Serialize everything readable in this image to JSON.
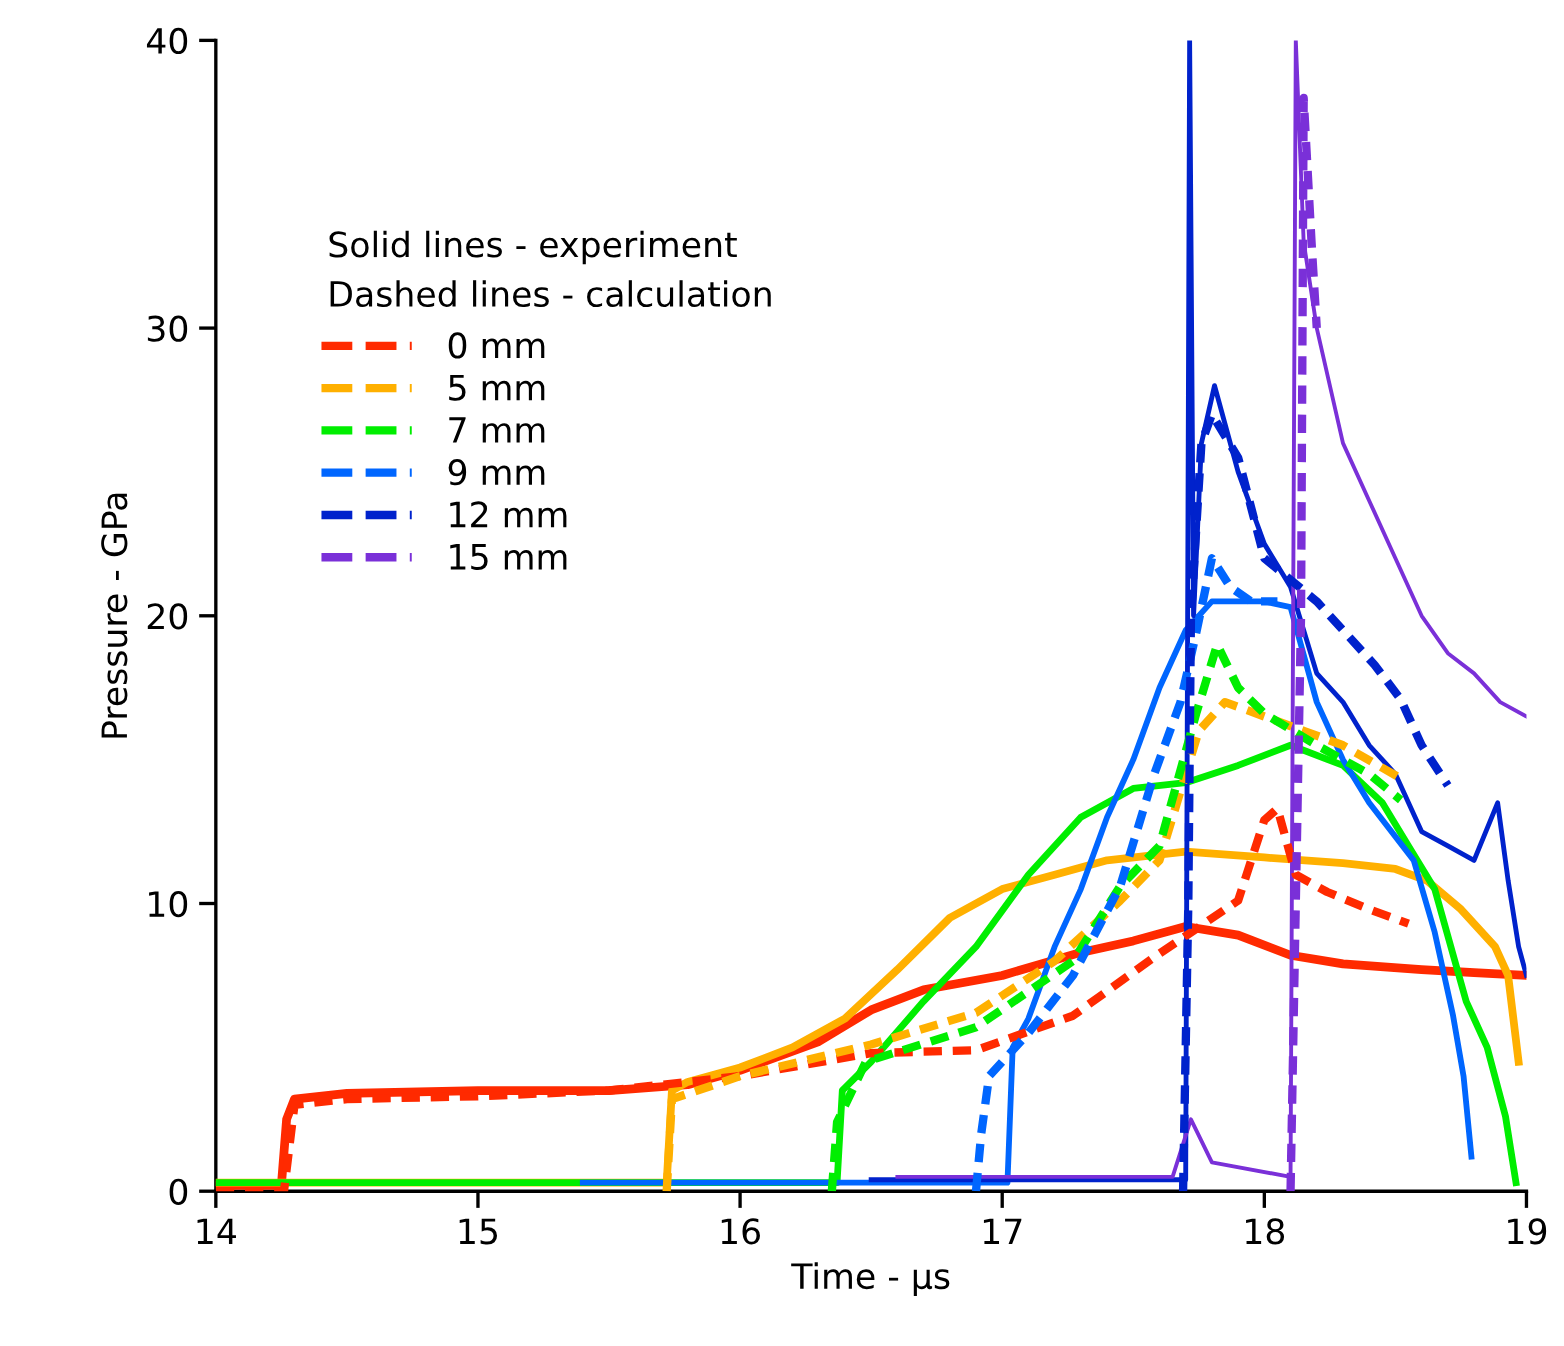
{
  "chart_data": {
    "type": "line",
    "xlabel": "Time - µs",
    "ylabel": "Pressure - GPa",
    "xlim": [
      14,
      19
    ],
    "ylim": [
      0,
      40
    ],
    "xticks": [
      14,
      15,
      16,
      17,
      18,
      19
    ],
    "yticks": [
      0,
      10,
      20,
      30,
      40
    ],
    "grid": false,
    "legend": "top left",
    "marker": "none",
    "annotations": [
      "Solid lines - experiment",
      "Dashed lines - calculation"
    ],
    "series": [
      {
        "color": "#ff2a00",
        "line_style": "solid",
        "x": [
          14,
          14.25,
          14.27,
          14.3,
          14.5,
          15,
          15.5,
          15.8,
          16.0,
          16.3,
          16.5,
          16.7,
          17.0,
          17.3,
          17.5,
          17.7,
          17.9,
          18.1,
          18.3,
          18.6,
          18.8,
          19.0
        ],
        "values": [
          0.2,
          0.2,
          2.5,
          3.2,
          3.4,
          3.5,
          3.5,
          3.7,
          4.2,
          5.2,
          6.3,
          7.0,
          7.5,
          8.3,
          8.7,
          9.2,
          8.9,
          8.2,
          7.9,
          7.7,
          7.6,
          7.5
        ]
      },
      {
        "color": "#ffb000",
        "line_style": "solid",
        "x": [
          14,
          15.72,
          15.74,
          15.8,
          16,
          16.2,
          16.4,
          16.6,
          16.8,
          17.0,
          17.2,
          17.4,
          17.7,
          18.0,
          18.3,
          18.5,
          18.62,
          18.75,
          18.88,
          18.93,
          18.97
        ],
        "values": [
          0.3,
          0.3,
          3.5,
          3.8,
          4.3,
          5.0,
          6.0,
          7.7,
          9.5,
          10.5,
          11.0,
          11.5,
          11.8,
          11.6,
          11.4,
          11.2,
          10.8,
          9.8,
          8.5,
          7.5,
          4.5
        ]
      },
      {
        "color": "#00ee00",
        "line_style": "solid",
        "x": [
          14,
          16.37,
          16.39,
          16.5,
          16.7,
          16.9,
          17.1,
          17.3,
          17.5,
          17.7,
          17.9,
          18.1,
          18.3,
          18.45,
          18.55,
          18.65,
          18.77,
          18.85,
          18.92,
          18.96
        ],
        "values": [
          0.3,
          0.3,
          3.5,
          4.5,
          6.6,
          8.5,
          11.0,
          13.0,
          14.0,
          14.2,
          14.8,
          15.5,
          14.8,
          13.5,
          12.0,
          10.5,
          6.6,
          5.0,
          2.6,
          0.3
        ]
      },
      {
        "color": "#0066ff",
        "line_style": "solid",
        "x": [
          15.4,
          17.02,
          17.04,
          17.1,
          17.2,
          17.3,
          17.4,
          17.5,
          17.6,
          17.7,
          17.8,
          18.0,
          18.1,
          18.2,
          18.3,
          18.4,
          18.57,
          18.65,
          18.72,
          18.76,
          18.79
        ],
        "values": [
          0.3,
          0.3,
          5.0,
          6.0,
          8.5,
          10.5,
          13.0,
          15.0,
          17.5,
          19.5,
          20.5,
          20.5,
          20.3,
          17.0,
          15.0,
          13.5,
          11.5,
          9.0,
          6.1,
          4.0,
          1.2
        ]
      },
      {
        "color": "#0022cc",
        "line_style": "solid",
        "x": [
          16.5,
          17.7,
          17.715,
          17.73,
          17.76,
          17.81,
          17.9,
          18.0,
          18.1,
          18.2,
          18.3,
          18.4,
          18.5,
          18.6,
          18.7,
          18.8,
          18.89,
          18.93,
          18.97,
          19.0
        ],
        "values": [
          0.4,
          0.4,
          40,
          20,
          26,
          28,
          25,
          22.5,
          21,
          18,
          17,
          15.5,
          14.5,
          12.5,
          12,
          11.5,
          13.5,
          10.8,
          8.5,
          7.5
        ]
      },
      {
        "color": "#7a30d8",
        "line_style": "solid",
        "x": [
          16.6,
          17.65,
          17.72,
          17.8,
          18.1,
          18.12,
          18.15,
          18.2,
          18.3,
          18.4,
          18.5,
          18.6,
          18.7,
          18.8,
          18.9,
          19.0
        ],
        "values": [
          0.5,
          0.5,
          2.5,
          1.0,
          0.5,
          40,
          33,
          30,
          26,
          24,
          22,
          20,
          18.7,
          18,
          17,
          16.5
        ]
      },
      {
        "name": "0 mm",
        "color": "#ff2a00",
        "line_style": "dashed",
        "x": [
          14,
          14.26,
          14.3,
          14.5,
          15.0,
          15.5,
          16.0,
          16.5,
          16.9,
          17.27,
          17.59,
          17.9,
          18.0,
          18.05,
          18.12,
          18.24,
          18.4,
          18.55
        ],
        "values": [
          0,
          0,
          3.0,
          3.2,
          3.3,
          3.5,
          4.0,
          4.8,
          4.9,
          6.1,
          8.2,
          10.1,
          12.9,
          13.3,
          11.0,
          10.4,
          9.8,
          9.3
        ]
      },
      {
        "name": "5 mm",
        "color": "#ffb000",
        "line_style": "dashed",
        "x": [
          15.72,
          15.74,
          16.0,
          16.5,
          16.9,
          17.2,
          17.45,
          17.6,
          17.75,
          17.85,
          18.0,
          18.15,
          18.3,
          18.53
        ],
        "values": [
          0,
          3.2,
          4.0,
          5.1,
          6.2,
          8,
          10.1,
          11.5,
          16.0,
          17,
          16.5,
          16,
          15.5,
          14.3
        ]
      },
      {
        "name": "7 mm",
        "color": "#00ee00",
        "line_style": "dashed",
        "x": [
          16.35,
          16.37,
          16.48,
          16.9,
          17.27,
          17.45,
          17.6,
          17.74,
          17.82,
          17.9,
          18.0,
          18.2,
          18.4,
          18.52
        ],
        "values": [
          0,
          2.4,
          4.5,
          5.7,
          8.0,
          10.6,
          12,
          16.6,
          19.0,
          17.5,
          16.6,
          15.5,
          14.5,
          13.6
        ]
      },
      {
        "name": "9 mm",
        "color": "#0066ff",
        "line_style": "dashed",
        "x": [
          16.9,
          16.92,
          16.95,
          17.1,
          17.27,
          17.45,
          17.58,
          17.68,
          17.74,
          17.8,
          17.87,
          17.95,
          18.05
        ],
        "values": [
          0,
          2.0,
          4.0,
          5.5,
          7.5,
          10.6,
          14.5,
          17,
          19.4,
          22,
          21,
          20.5,
          20.5
        ]
      },
      {
        "name": "12 mm",
        "color": "#0022cc",
        "line_style": "dashed",
        "x": [
          17.69,
          17.71,
          17.72,
          17.76,
          17.8,
          17.9,
          18.0,
          18.2,
          18.42,
          18.52,
          18.6,
          18.7
        ],
        "values": [
          0,
          10,
          20,
          26,
          27,
          25.5,
          22,
          20.5,
          18.3,
          17.1,
          15.5,
          14.1
        ]
      },
      {
        "name": "15 mm",
        "color": "#7a30d8",
        "line_style": "dashed",
        "x": [
          18.1,
          18.12,
          18.14,
          18.15,
          18.18,
          18.2
        ],
        "values": [
          0,
          10,
          20,
          38,
          33,
          30
        ]
      }
    ]
  }
}
